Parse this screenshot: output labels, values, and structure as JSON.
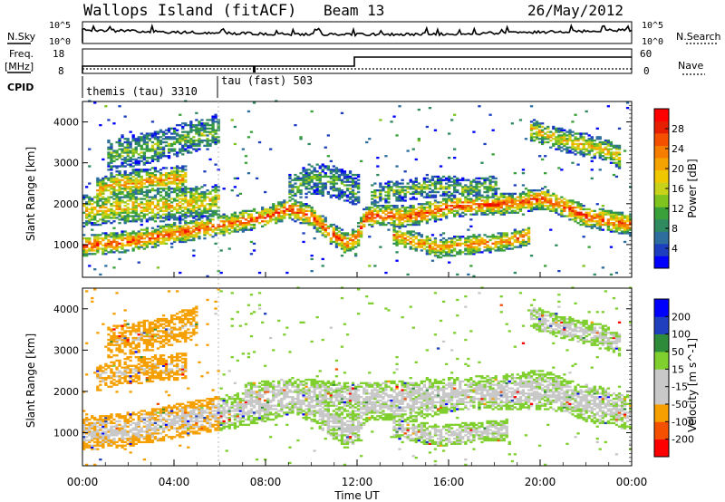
{
  "header": {
    "station": "Wallops Island (fitACF)",
    "beam": "Beam 13",
    "date": "26/May/2012"
  },
  "top_panels": {
    "nsky_label": "N.Sky",
    "nsky_ticks": [
      "10^5",
      "10^0"
    ],
    "nsearch_label": "N.Search",
    "nsearch_ticks": [
      "10^5",
      "10^0"
    ],
    "freq_label": "Freq.",
    "freq_unit": "[MHz]",
    "freq_ticks": [
      "18",
      "8"
    ],
    "nave_label": "Nave",
    "nave_ticks": [
      "60",
      "0"
    ],
    "cpid_label": "CPID",
    "cpid_segments": [
      {
        "start_hour": 0,
        "end_hour": 6,
        "label": "themis (tau) 3310"
      },
      {
        "start_hour": 6,
        "end_hour": 24,
        "label": "tau (fast) 503"
      }
    ]
  },
  "chart_data": [
    {
      "type": "heatmap",
      "name": "power",
      "ylabel": "Slant Range [km]",
      "ylim": [
        200,
        4500
      ],
      "y_ticks": [
        1000,
        2000,
        3000,
        4000
      ],
      "xlim": [
        0,
        24
      ],
      "colorbar": {
        "label": "Power [dB]",
        "range": [
          0,
          32
        ],
        "ticks": [
          "4",
          "8",
          "12",
          "16",
          "20",
          "24",
          "28"
        ],
        "colors": [
          "#0000ff",
          "#1d3fbf",
          "#2e6e9e",
          "#2f8a5f",
          "#3aa13a",
          "#7fc31f",
          "#c8d21a",
          "#f0c800",
          "#f5a300",
          "#f57e00",
          "#f55000",
          "#e51f00",
          "#ff0000"
        ]
      },
      "bands": [
        {
          "level": 0.62,
          "points": [
            [
              0,
              950
            ],
            [
              1,
              1000
            ],
            [
              2,
              1050
            ],
            [
              3,
              1150
            ],
            [
              4,
              1250
            ],
            [
              5,
              1350
            ],
            [
              6,
              1450
            ],
            [
              7,
              1550
            ],
            [
              8,
              1650
            ],
            [
              9,
              1850
            ],
            [
              10,
              1650
            ],
            [
              10.8,
              1250
            ],
            [
              11.5,
              1000
            ],
            [
              12,
              1200
            ],
            [
              12.3,
              1650
            ],
            [
              13,
              1700
            ],
            [
              14,
              1650
            ],
            [
              15,
              1750
            ],
            [
              16,
              1900
            ],
            [
              17,
              1950
            ],
            [
              18,
              1950
            ],
            [
              19,
              2000
            ],
            [
              20,
              2100
            ],
            [
              21,
              1900
            ],
            [
              22,
              1650
            ],
            [
              23,
              1550
            ],
            [
              24,
              1450
            ]
          ],
          "width": 200
        },
        {
          "level": 0.45,
          "points": [
            [
              0,
              1800
            ],
            [
              1,
              1850
            ],
            [
              2,
              1900
            ],
            [
              3,
              1900
            ],
            [
              4,
              1950
            ],
            [
              5,
              2000
            ],
            [
              6,
              2050
            ]
          ],
          "width": 300
        },
        {
          "level": 0.5,
          "points": [
            [
              0.6,
              2300
            ],
            [
              1.5,
              2450
            ],
            [
              2.5,
              2500
            ],
            [
              3.5,
              2550
            ],
            [
              4.5,
              2600
            ]
          ],
          "width": 250
        },
        {
          "level": 0.3,
          "points": [
            [
              1,
              3150
            ],
            [
              2,
              3250
            ],
            [
              3,
              3350
            ],
            [
              4,
              3500
            ],
            [
              5,
              3650
            ],
            [
              6,
              3800
            ]
          ],
          "width": 300
        },
        {
          "level": 0.55,
          "points": [
            [
              13.5,
              1200
            ],
            [
              14.5,
              1050
            ],
            [
              15.5,
              900
            ],
            [
              16.5,
              950
            ],
            [
              17.5,
              1000
            ],
            [
              18.5,
              1050
            ],
            [
              19.5,
              1200
            ]
          ],
          "width": 180
        },
        {
          "level": 0.45,
          "points": [
            [
              19.5,
              3800
            ],
            [
              20.5,
              3600
            ],
            [
              21.5,
              3450
            ],
            [
              22.5,
              3350
            ],
            [
              23.5,
              3100
            ]
          ],
          "width": 220
        },
        {
          "level": 0.25,
          "points": [
            [
              9,
              2300
            ],
            [
              10,
              2600
            ],
            [
              11,
              2500
            ],
            [
              12,
              2300
            ]
          ],
          "width": 300
        },
        {
          "level": 0.3,
          "points": [
            [
              12.5,
              2200
            ],
            [
              14,
              2300
            ],
            [
              15.5,
              2400
            ],
            [
              17,
              2350
            ],
            [
              18,
              2400
            ]
          ],
          "width": 200
        }
      ]
    },
    {
      "type": "heatmap",
      "name": "velocity",
      "xlabel": "Time UT",
      "ylabel": "Slant Range [km]",
      "ylim": [
        200,
        4500
      ],
      "y_ticks": [
        1000,
        2000,
        3000,
        4000
      ],
      "xlim": [
        0,
        24
      ],
      "x_ticks": [
        "00:00",
        "04:00",
        "08:00",
        "12:00",
        "16:00",
        "20:00",
        "00:00"
      ],
      "colorbar": {
        "label": "Velocity [m s^-1]",
        "range": [
          -250,
          250
        ],
        "ticks": [
          "200",
          "100",
          "50",
          "15",
          "-15",
          "-50",
          "-100",
          "-200"
        ],
        "colors": [
          "#ff0000",
          "#f55000",
          "#f5a000",
          "#c8c8c8",
          "#c8c8c8",
          "#7fcf2f",
          "#2e8b3a",
          "#1f3fbf",
          "#0000ff"
        ]
      },
      "bands": [
        {
          "level": 0.5,
          "points": [
            [
              0,
              950
            ],
            [
              1,
              1000
            ],
            [
              2,
              1050
            ],
            [
              3,
              1150
            ],
            [
              4,
              1250
            ],
            [
              5,
              1350
            ],
            [
              6,
              1450
            ],
            [
              7,
              1550
            ],
            [
              8,
              1650
            ],
            [
              9,
              1850
            ],
            [
              10,
              1650
            ],
            [
              10.8,
              1250
            ],
            [
              11.5,
              1000
            ],
            [
              12,
              1200
            ],
            [
              12.3,
              1650
            ],
            [
              13,
              1700
            ],
            [
              14,
              1650
            ],
            [
              15,
              1750
            ],
            [
              16,
              1900
            ],
            [
              17,
              1950
            ],
            [
              18,
              1950
            ],
            [
              19,
              2000
            ],
            [
              20,
              2100
            ],
            [
              21,
              1900
            ],
            [
              22,
              1650
            ],
            [
              23,
              1550
            ],
            [
              24,
              1450
            ]
          ],
          "width": 320
        },
        {
          "level": 0.5,
          "points": [
            [
              7,
              1800
            ],
            [
              9,
              1950
            ],
            [
              11,
              1850
            ],
            [
              13,
              1850
            ],
            [
              15,
              1900
            ],
            [
              17,
              1900
            ],
            [
              19,
              1900
            ],
            [
              21,
              1850
            ],
            [
              23,
              1700
            ]
          ],
          "width": 280
        },
        {
          "level": 0.3,
          "points": [
            [
              0.6,
              2300
            ],
            [
              1.5,
              2450
            ],
            [
              2.5,
              2500
            ],
            [
              3.5,
              2550
            ],
            [
              4.5,
              2600
            ]
          ],
          "width": 250
        },
        {
          "level": 0.25,
          "points": [
            [
              1,
              3150
            ],
            [
              2,
              3250
            ],
            [
              3,
              3350
            ],
            [
              4,
              3500
            ],
            [
              5,
              3650
            ]
          ],
          "width": 300
        },
        {
          "level": 0.5,
          "points": [
            [
              13.5,
              1100
            ],
            [
              14.5,
              1000
            ],
            [
              15.5,
              900
            ],
            [
              16.5,
              950
            ],
            [
              17.5,
              1000
            ],
            [
              18.5,
              1050
            ]
          ],
          "width": 200
        },
        {
          "level": 0.5,
          "points": [
            [
              19.5,
              3800
            ],
            [
              20.5,
              3600
            ],
            [
              21.5,
              3450
            ],
            [
              22.5,
              3350
            ],
            [
              23.5,
              3100
            ]
          ],
          "width": 220
        }
      ]
    }
  ]
}
